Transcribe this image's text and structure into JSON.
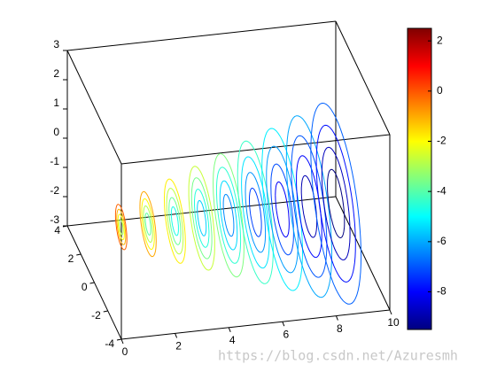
{
  "chart_data": {
    "type": "contourslice",
    "xlim": [
      0,
      10
    ],
    "xticks": [
      0,
      2,
      4,
      6,
      8,
      10
    ],
    "ylim": [
      -4,
      4
    ],
    "yticks": [
      -4,
      -2,
      0,
      2,
      4
    ],
    "zlim": [
      -3,
      3
    ],
    "zticks": [
      -3,
      -2,
      -1,
      0,
      1,
      2,
      3
    ],
    "colorbar": {
      "colormap": "jet",
      "clim": [
        -9.5,
        2.5
      ],
      "ticks": [
        -8,
        -6,
        -4,
        -2,
        0,
        2
      ]
    }
  },
  "watermark": "https://blog.csdn.net/Azuresmh"
}
